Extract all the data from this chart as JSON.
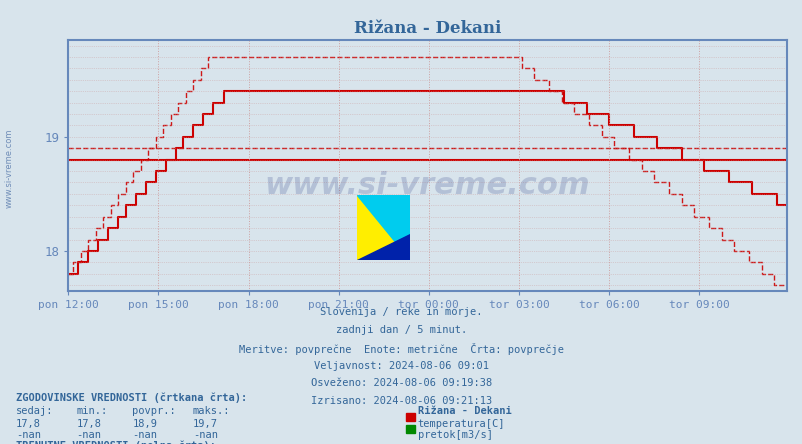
{
  "title": "Rižana - Dekani",
  "bg_color": "#d8e4ec",
  "plot_bg_color": "#d8e4ec",
  "axis_color": "#6688bb",
  "grid_color": "#cc9999",
  "text_color": "#336699",
  "line_color": "#cc0000",
  "ylim": [
    17.65,
    19.85
  ],
  "yticks": [
    18,
    19
  ],
  "watermark_text": "www.si-vreme.com",
  "subtitle_lines": [
    "Slovenija / reke in morje.",
    "zadnji dan / 5 minut.",
    "Meritve: povprečne  Enote: metrične  Črta: povprečje",
    "Veljavnost: 2024-08-06 09:01",
    "Osveženo: 2024-08-06 09:19:38",
    "Izrisano: 2024-08-06 09:21:13"
  ],
  "xtick_labels": [
    "pon 12:00",
    "pon 15:00",
    "pon 18:00",
    "pon 21:00",
    "tor 00:00",
    "tor 03:00",
    "tor 06:00",
    "tor 09:00"
  ],
  "xtick_positions": [
    0,
    36,
    72,
    108,
    144,
    180,
    216,
    252
  ],
  "avg_historical": 18.9,
  "avg_current": 18.8,
  "n_points": 288
}
